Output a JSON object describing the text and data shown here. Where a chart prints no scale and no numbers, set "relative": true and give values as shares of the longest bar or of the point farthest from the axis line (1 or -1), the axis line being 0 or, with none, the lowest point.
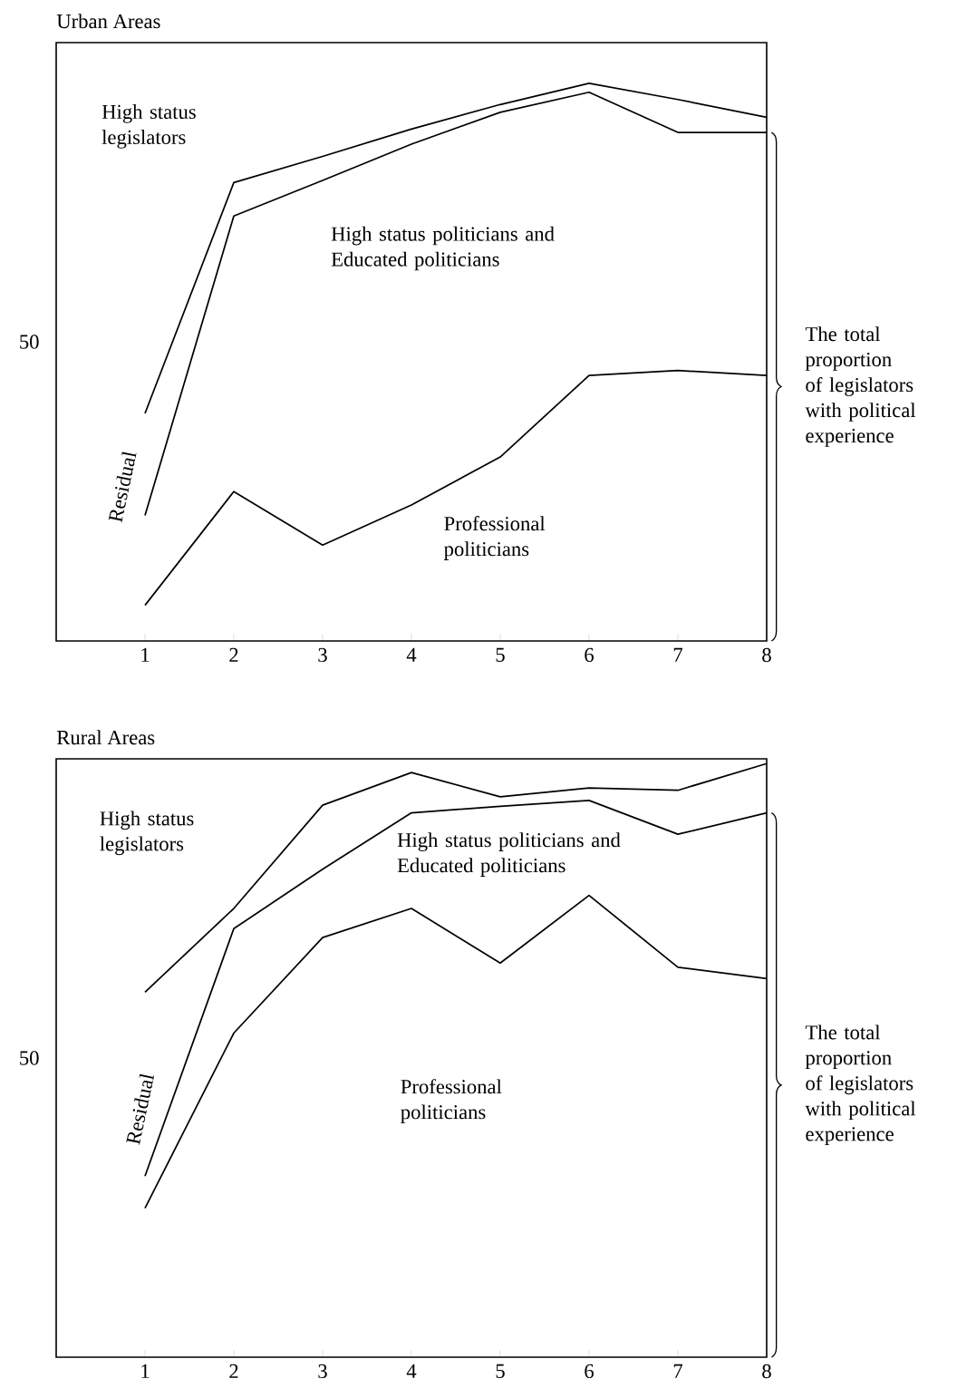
{
  "chart_data": [
    {
      "type": "line",
      "title": "Urban Areas",
      "relative": true,
      "x": [
        1,
        2,
        3,
        4,
        5,
        6,
        7,
        8
      ],
      "series": [
        {
          "color": "#000000",
          "values": [
            0.408,
            0.822,
            0.869,
            0.918,
            0.962,
            1,
            0.971,
            0.939
          ]
        },
        {
          "color": "#000000",
          "values": [
            0.225,
            0.762,
            0.826,
            0.891,
            0.948,
            0.984,
            0.912,
            0.912
          ]
        },
        {
          "color": "#000000",
          "values": [
            0.064,
            0.268,
            0.172,
            0.244,
            0.33,
            0.476,
            0.485,
            0.476
          ]
        }
      ],
      "xlim": [
        0,
        8
      ],
      "xticks": [
        1,
        2,
        3,
        4,
        5,
        6,
        7,
        8
      ],
      "annotations": [
        "High status legislators",
        "High status politicians and Educated politicians",
        "Professional politicians",
        "Residual",
        "The total proportion of legislators with political experience",
        "50"
      ]
    },
    {
      "type": "line",
      "title": "Rural Areas",
      "relative": true,
      "x": [
        1,
        2,
        3,
        4,
        5,
        6,
        7,
        8
      ],
      "series": [
        {
          "color": "#000000",
          "values": [
            0.615,
            0.756,
            0.93,
            0.985,
            0.944,
            0.959,
            0.955,
            1
          ]
        },
        {
          "color": "#000000",
          "values": [
            0.305,
            0.722,
            0.822,
            0.917,
            0.928,
            0.938,
            0.881,
            0.917
          ]
        },
        {
          "color": "#000000",
          "values": [
            0.251,
            0.546,
            0.707,
            0.756,
            0.664,
            0.778,
            0.657,
            0.638
          ]
        }
      ],
      "xlim": [
        0,
        8
      ],
      "xticks": [
        1,
        2,
        3,
        4,
        5,
        6,
        7,
        8
      ],
      "annotations": [
        "High status legislators",
        "High status politicians and Educated politicians",
        "Professional politicians",
        "Residual",
        "The total proportion of legislators with political experience",
        "50"
      ]
    }
  ]
}
